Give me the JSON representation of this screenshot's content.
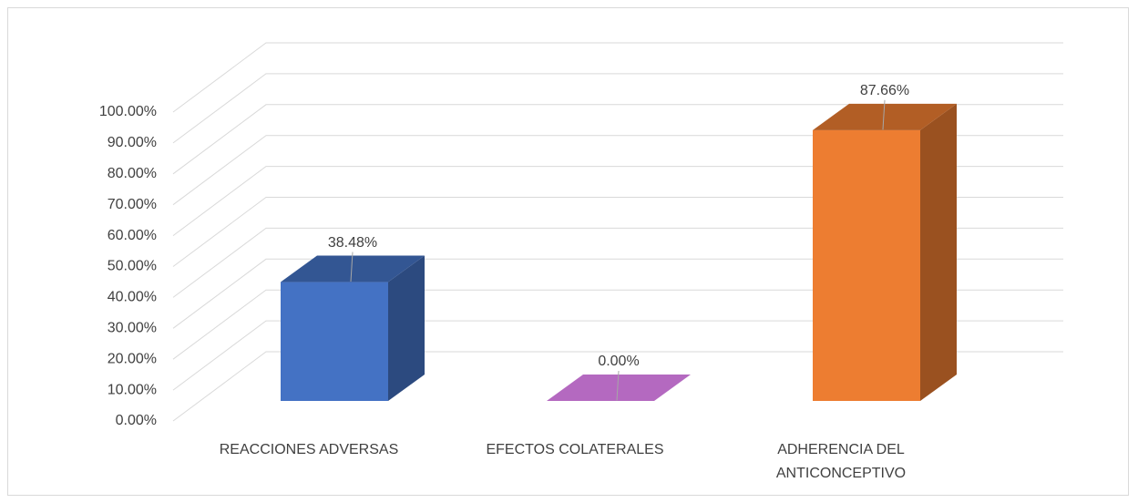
{
  "chart_data": {
    "type": "bar3d",
    "categories": [
      "REACCIONES ADVERSAS",
      "EFECTOS COLATERALES",
      "ADHERENCIA DEL ANTICONCEPTIVO"
    ],
    "values": [
      38.48,
      0,
      87.66
    ],
    "value_labels": [
      "38.48%",
      "0.00%",
      "87.66%"
    ],
    "colors": [
      "#4472c4",
      "#b469c0",
      "#ed7d31"
    ],
    "ylim": [
      0,
      100
    ],
    "yticks": [
      {
        "value": 0,
        "label": "0.00%"
      },
      {
        "value": 10,
        "label": "10.00%"
      },
      {
        "value": 20,
        "label": "20.00%"
      },
      {
        "value": 30,
        "label": "30.00%"
      },
      {
        "value": 40,
        "label": "40.00%"
      },
      {
        "value": 50,
        "label": "50.00%"
      },
      {
        "value": 60,
        "label": "60.00%"
      },
      {
        "value": 70,
        "label": "70.00%"
      },
      {
        "value": 80,
        "label": "80.00%"
      },
      {
        "value": 90,
        "label": "90.00%"
      },
      {
        "value": 100,
        "label": "100.00%"
      }
    ],
    "grid": true
  }
}
